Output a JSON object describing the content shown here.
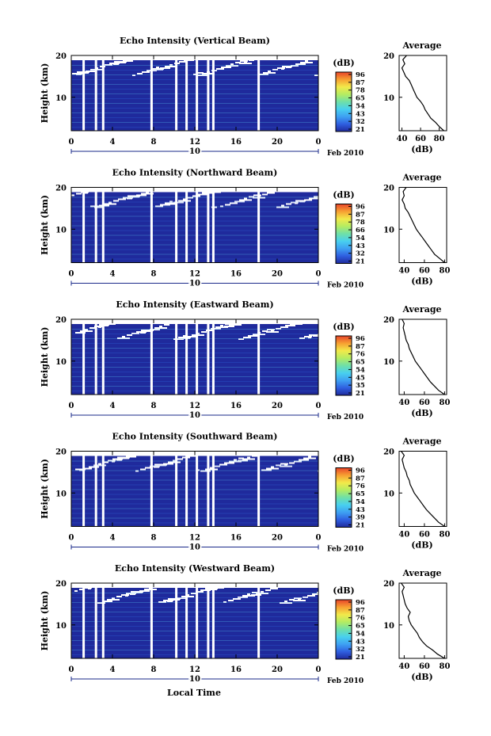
{
  "chart_data": {
    "type": "heatmap",
    "figure_x_label": "Local Time",
    "colorbar": {
      "unit": "(dB)",
      "range": [
        21,
        96
      ],
      "colors": [
        "#1f2a9c",
        "#2f5fe0",
        "#3ea0f2",
        "#48d0ef",
        "#6fe0a8",
        "#b4ec62",
        "#f2e94a",
        "#f7a032",
        "#e8442a"
      ]
    },
    "shared": {
      "ylabel": "Height (km)",
      "y_ticks": [
        10,
        20
      ],
      "ylim": [
        2,
        20
      ],
      "x_ticks": [
        "0",
        "4",
        "8",
        "12",
        "16",
        "20",
        "0"
      ],
      "xlim": [
        0,
        24
      ],
      "date_label": "Feb 2010",
      "date_tick": "10",
      "profile_title": "Average",
      "profile_xlabel": "(dB)",
      "profile_y_ticks": [
        10,
        20
      ],
      "missing_hours": [
        1.2,
        2.4,
        3.1,
        7.8,
        10.2,
        11.2,
        12.2,
        13.3,
        13.8,
        18.2
      ]
    },
    "panels": [
      {
        "title": "Echo Intensity (Vertical Beam)",
        "colorbar_ticks": [
          "96",
          "87",
          "78",
          "65",
          "54",
          "43",
          "32",
          "21"
        ],
        "profile_x_ticks": [
          "40",
          "60",
          "80"
        ],
        "profile_xlim": [
          37,
          88
        ],
        "profile_heights": [
          2,
          3,
          4,
          5,
          6,
          7,
          8,
          9,
          10,
          11,
          12,
          13,
          14,
          15,
          16,
          17,
          18,
          19,
          20
        ],
        "profile_values": [
          85,
          80,
          76,
          71,
          68,
          65,
          63,
          60,
          56,
          54,
          52,
          50,
          48,
          44,
          42,
          40,
          43,
          41,
          45
        ]
      },
      {
        "title": "Echo Intensity (Northward Beam)",
        "colorbar_ticks": [
          "96",
          "87",
          "78",
          "66",
          "54",
          "43",
          "32",
          "21"
        ],
        "profile_x_ticks": [
          "40",
          "60",
          "80"
        ],
        "profile_xlim": [
          35,
          82
        ],
        "profile_heights": [
          2,
          3,
          4,
          5,
          6,
          7,
          8,
          9,
          10,
          11,
          12,
          13,
          14,
          15,
          16,
          17,
          18,
          19,
          20
        ],
        "profile_values": [
          80,
          75,
          70,
          67,
          64,
          61,
          58,
          55,
          52,
          50,
          48,
          46,
          44,
          41,
          40,
          38,
          40,
          39,
          42
        ]
      },
      {
        "title": "Echo Intensity (Eastward Beam)",
        "colorbar_ticks": [
          "96",
          "87",
          "76",
          "65",
          "54",
          "45",
          "35",
          "21"
        ],
        "profile_x_ticks": [
          "40",
          "60",
          "80"
        ],
        "profile_xlim": [
          35,
          82
        ],
        "profile_heights": [
          2,
          3,
          4,
          5,
          6,
          7,
          8,
          9,
          10,
          11,
          12,
          13,
          14,
          15,
          16,
          17,
          18,
          19,
          20
        ],
        "profile_values": [
          80,
          74,
          70,
          66,
          63,
          60,
          57,
          54,
          51,
          49,
          47,
          45,
          44,
          42,
          41,
          40,
          39,
          40,
          38
        ]
      },
      {
        "title": "Echo Intensity (Southward Beam)",
        "colorbar_ticks": [
          "96",
          "87",
          "76",
          "65",
          "54",
          "43",
          "39",
          "21"
        ],
        "profile_x_ticks": [
          "40",
          "60",
          "80"
        ],
        "profile_xlim": [
          35,
          82
        ],
        "profile_heights": [
          2,
          3,
          4,
          5,
          6,
          7,
          8,
          9,
          10,
          11,
          12,
          13,
          14,
          15,
          16,
          17,
          18,
          19,
          20
        ],
        "profile_values": [
          80,
          74,
          70,
          66,
          62,
          59,
          56,
          53,
          50,
          48,
          46,
          45,
          43,
          42,
          40,
          39,
          38,
          40,
          37
        ]
      },
      {
        "title": "Echo Intensity (Westward Beam)",
        "colorbar_ticks": [
          "96",
          "87",
          "76",
          "65",
          "54",
          "43",
          "32",
          "21"
        ],
        "profile_x_ticks": [
          "40",
          "60",
          "80"
        ],
        "profile_xlim": [
          35,
          82
        ],
        "profile_heights": [
          2,
          3,
          4,
          5,
          6,
          7,
          8,
          9,
          10,
          11,
          12,
          13,
          14,
          15,
          16,
          17,
          18,
          19,
          20
        ],
        "profile_values": [
          80,
          73,
          68,
          62,
          58,
          55,
          53,
          50,
          47,
          45,
          44,
          46,
          43,
          41,
          40,
          39,
          38,
          40,
          37
        ]
      }
    ]
  }
}
